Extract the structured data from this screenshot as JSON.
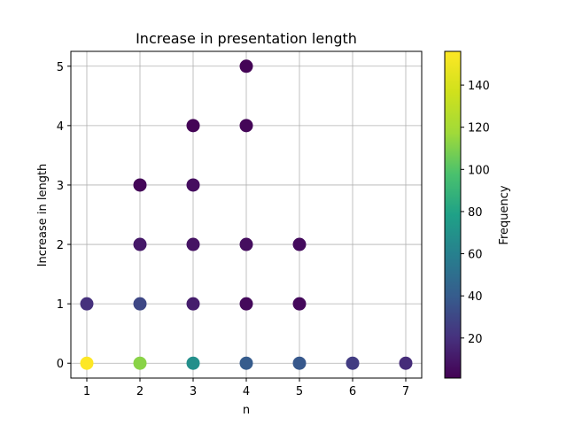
{
  "chart_data": {
    "type": "scatter",
    "title": "Increase in presentation length",
    "xlabel": "n",
    "ylabel": "Increase in length",
    "xlim": [
      0.7,
      7.3
    ],
    "ylim": [
      -0.25,
      5.25
    ],
    "xticks": [
      1,
      2,
      3,
      4,
      5,
      6,
      7
    ],
    "yticks": [
      0,
      1,
      2,
      3,
      4,
      5
    ],
    "grid": true,
    "points": [
      {
        "x": 1,
        "y": 0,
        "frequency": 156
      },
      {
        "x": 1,
        "y": 1,
        "frequency": 20
      },
      {
        "x": 2,
        "y": 0,
        "frequency": 112
      },
      {
        "x": 2,
        "y": 1,
        "frequency": 30
      },
      {
        "x": 2,
        "y": 2,
        "frequency": 10
      },
      {
        "x": 2,
        "y": 3,
        "frequency": 3
      },
      {
        "x": 3,
        "y": 0,
        "frequency": 68
      },
      {
        "x": 3,
        "y": 1,
        "frequency": 12
      },
      {
        "x": 3,
        "y": 2,
        "frequency": 8
      },
      {
        "x": 3,
        "y": 3,
        "frequency": 6
      },
      {
        "x": 3,
        "y": 4,
        "frequency": 2
      },
      {
        "x": 4,
        "y": 0,
        "frequency": 40
      },
      {
        "x": 4,
        "y": 1,
        "frequency": 4
      },
      {
        "x": 4,
        "y": 2,
        "frequency": 6
      },
      {
        "x": 4,
        "y": 4,
        "frequency": 3
      },
      {
        "x": 4,
        "y": 5,
        "frequency": 2
      },
      {
        "x": 5,
        "y": 0,
        "frequency": 38
      },
      {
        "x": 5,
        "y": 1,
        "frequency": 4
      },
      {
        "x": 5,
        "y": 2,
        "frequency": 5
      },
      {
        "x": 6,
        "y": 0,
        "frequency": 25
      },
      {
        "x": 7,
        "y": 0,
        "frequency": 18
      }
    ],
    "colorbar": {
      "label": "Frequency",
      "colormap": "viridis",
      "range": [
        1,
        156
      ],
      "ticks": [
        20,
        40,
        60,
        80,
        100,
        120,
        140
      ]
    }
  }
}
